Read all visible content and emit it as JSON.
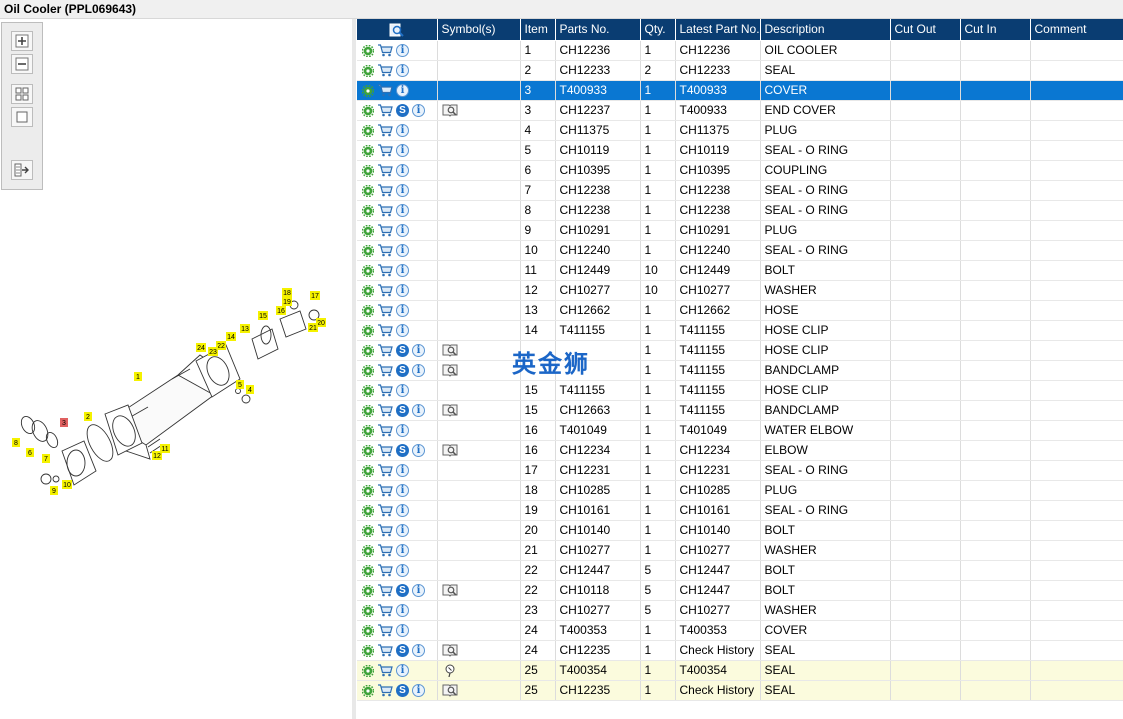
{
  "window": {
    "title": "Oil Cooler (PPL069643)"
  },
  "toolbar": {
    "buttons": [
      "zoom-in-icon",
      "zoom-out-icon",
      "fit-all-icon",
      "fit-page-icon",
      "export-icon"
    ]
  },
  "diagram": {
    "callouts": [
      "1",
      "2",
      "3",
      "4",
      "5",
      "6",
      "7",
      "8",
      "9",
      "10",
      "11",
      "12",
      "13",
      "14",
      "15",
      "16",
      "17",
      "18",
      "19",
      "20",
      "21",
      "22",
      "23",
      "24"
    ]
  },
  "grid": {
    "columns": {
      "icons": "",
      "symbols": "Symbol(s)",
      "item": "Item",
      "parts_no": "Parts No.",
      "qty": "Qty.",
      "latest_part_no": "Latest Part No.",
      "description": "Description",
      "cut_out": "Cut Out",
      "cut_in": "Cut In",
      "comment": "Comment"
    },
    "rows": [
      {
        "item": "1",
        "parts_no": "CH12236",
        "qty": "1",
        "latest": "CH12236",
        "desc": "OIL COOLER",
        "s": false,
        "book": false
      },
      {
        "item": "2",
        "parts_no": "CH12233",
        "qty": "2",
        "latest": "CH12233",
        "desc": "SEAL",
        "s": false,
        "book": false
      },
      {
        "item": "3",
        "parts_no": "T400933",
        "qty": "1",
        "latest": "T400933",
        "desc": "COVER",
        "s": false,
        "book": false
      },
      {
        "item": "3",
        "parts_no": "CH12237",
        "qty": "1",
        "latest": "T400933",
        "desc": "END COVER",
        "s": true,
        "book": true
      },
      {
        "item": "4",
        "parts_no": "CH11375",
        "qty": "1",
        "latest": "CH11375",
        "desc": "PLUG",
        "s": false,
        "book": false
      },
      {
        "item": "5",
        "parts_no": "CH10119",
        "qty": "1",
        "latest": "CH10119",
        "desc": "SEAL - O RING",
        "s": false,
        "book": false
      },
      {
        "item": "6",
        "parts_no": "CH10395",
        "qty": "1",
        "latest": "CH10395",
        "desc": "COUPLING",
        "s": false,
        "book": false
      },
      {
        "item": "7",
        "parts_no": "CH12238",
        "qty": "1",
        "latest": "CH12238",
        "desc": "SEAL - O RING",
        "s": false,
        "book": false
      },
      {
        "item": "8",
        "parts_no": "CH12238",
        "qty": "1",
        "latest": "CH12238",
        "desc": "SEAL - O RING",
        "s": false,
        "book": false
      },
      {
        "item": "9",
        "parts_no": "CH10291",
        "qty": "1",
        "latest": "CH10291",
        "desc": "PLUG",
        "s": false,
        "book": false
      },
      {
        "item": "10",
        "parts_no": "CH12240",
        "qty": "1",
        "latest": "CH12240",
        "desc": "SEAL - O RING",
        "s": false,
        "book": false
      },
      {
        "item": "11",
        "parts_no": "CH12449",
        "qty": "10",
        "latest": "CH12449",
        "desc": "BOLT",
        "s": false,
        "book": false
      },
      {
        "item": "12",
        "parts_no": "CH10277",
        "qty": "10",
        "latest": "CH10277",
        "desc": "WASHER",
        "s": false,
        "book": false
      },
      {
        "item": "13",
        "parts_no": "CH12662",
        "qty": "1",
        "latest": "CH12662",
        "desc": "HOSE",
        "s": false,
        "book": false
      },
      {
        "item": "14",
        "parts_no": "T411155",
        "qty": "1",
        "latest": "T411155",
        "desc": "HOSE CLIP",
        "s": false,
        "book": false
      },
      {
        "item": "",
        "parts_no": "",
        "qty": "1",
        "latest": "T411155",
        "desc": "HOSE CLIP",
        "s": true,
        "book": true
      },
      {
        "item": "",
        "parts_no": "",
        "qty": "1",
        "latest": "T411155",
        "desc": "BANDCLAMP",
        "s": true,
        "book": true
      },
      {
        "item": "15",
        "parts_no": "T411155",
        "qty": "1",
        "latest": "T411155",
        "desc": "HOSE CLIP",
        "s": false,
        "book": false
      },
      {
        "item": "15",
        "parts_no": "CH12663",
        "qty": "1",
        "latest": "T411155",
        "desc": "BANDCLAMP",
        "s": true,
        "book": true
      },
      {
        "item": "16",
        "parts_no": "T401049",
        "qty": "1",
        "latest": "T401049",
        "desc": "WATER ELBOW",
        "s": false,
        "book": false
      },
      {
        "item": "16",
        "parts_no": "CH12234",
        "qty": "1",
        "latest": "CH12234",
        "desc": "ELBOW",
        "s": true,
        "book": true
      },
      {
        "item": "17",
        "parts_no": "CH12231",
        "qty": "1",
        "latest": "CH12231",
        "desc": "SEAL - O RING",
        "s": false,
        "book": false
      },
      {
        "item": "18",
        "parts_no": "CH10285",
        "qty": "1",
        "latest": "CH10285",
        "desc": "PLUG",
        "s": false,
        "book": false
      },
      {
        "item": "19",
        "parts_no": "CH10161",
        "qty": "1",
        "latest": "CH10161",
        "desc": "SEAL - O RING",
        "s": false,
        "book": false
      },
      {
        "item": "20",
        "parts_no": "CH10140",
        "qty": "1",
        "latest": "CH10140",
        "desc": "BOLT",
        "s": false,
        "book": false
      },
      {
        "item": "21",
        "parts_no": "CH10277",
        "qty": "1",
        "latest": "CH10277",
        "desc": "WASHER",
        "s": false,
        "book": false
      },
      {
        "item": "22",
        "parts_no": "CH12447",
        "qty": "5",
        "latest": "CH12447",
        "desc": "BOLT",
        "s": false,
        "book": false
      },
      {
        "item": "22",
        "parts_no": "CH10118",
        "qty": "5",
        "latest": "CH12447",
        "desc": "BOLT",
        "s": true,
        "book": true
      },
      {
        "item": "23",
        "parts_no": "CH10277",
        "qty": "5",
        "latest": "CH10277",
        "desc": "WASHER",
        "s": false,
        "book": false
      },
      {
        "item": "24",
        "parts_no": "T400353",
        "qty": "1",
        "latest": "T400353",
        "desc": "COVER",
        "s": false,
        "book": false
      },
      {
        "item": "24",
        "parts_no": "CH12235",
        "qty": "1",
        "latest": "Check History",
        "desc": "SEAL",
        "s": true,
        "book": true
      },
      {
        "item": "25",
        "parts_no": "T400354",
        "qty": "1",
        "latest": "T400354",
        "desc": "SEAL",
        "s": false,
        "book": false,
        "pin": true
      },
      {
        "item": "25",
        "parts_no": "CH12235",
        "qty": "1",
        "latest": "Check History",
        "desc": "SEAL",
        "s": true,
        "book": true
      }
    ],
    "selected_row": 2,
    "highlight_rows": [
      31,
      32
    ]
  },
  "watermark": "英金狮",
  "colors": {
    "header_bg": "#0a3d72",
    "selected_bg": "#0a77d2",
    "highlight_bg": "#fbfbdd",
    "callout_bg": "#f5f200"
  }
}
